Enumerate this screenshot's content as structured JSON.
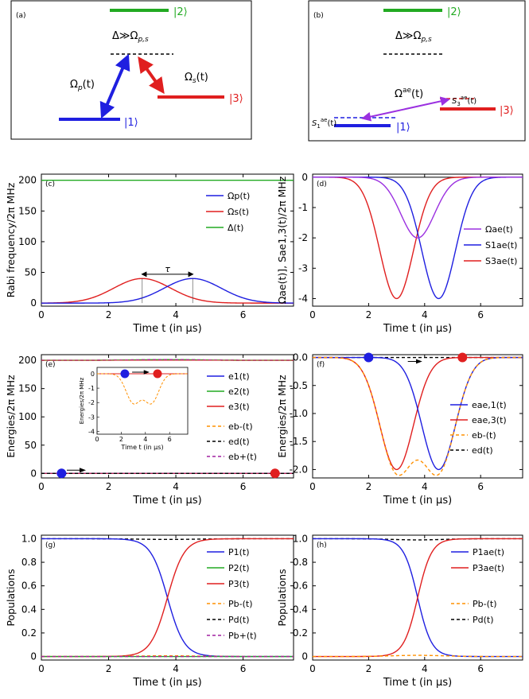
{
  "panel_a": {
    "tag": "(a)",
    "level2": "|2⟩",
    "level1": "|1⟩",
    "level3": "|3⟩",
    "detuning": "Δ≫Ω",
    "detuning_sub": "p,s",
    "pump": "Ω",
    "pump_sub": "p",
    "pump_arg": "(t)",
    "stokes": "Ω",
    "stokes_sub": "s",
    "stokes_arg": "(t)"
  },
  "panel_b": {
    "tag": "(b)",
    "level2": "|2⟩",
    "level1": "|1⟩",
    "level3": "|3⟩",
    "detuning": "Δ≫Ω",
    "detuning_sub": "p,s",
    "coupling": "Ω",
    "coupling_sup": "ae",
    "coupling_arg": "(t)",
    "shift1": "S",
    "shift1_sub": "1",
    "shift1_sup": "ae",
    "shift1_arg": "(t)",
    "shift3": "S",
    "shift3_sub": "3",
    "shift3_sup": "ae",
    "shift3_arg": "(t)"
  },
  "colors": {
    "blue": "#1f1fe0",
    "red": "#e01f1f",
    "green": "#22aa22",
    "purple": "#9b30e0",
    "orange": "#ff9000",
    "black": "#000000",
    "dashed_purple": "#a020a0"
  },
  "chart_data": [
    {
      "id": "c",
      "tag": "(c)",
      "type": "line",
      "xlabel": "Time t (in μs)",
      "ylabel": "Rabi frequency/2π MHz",
      "xlim": [
        0,
        7.5
      ],
      "ylim": [
        -5,
        210
      ],
      "xticks": [
        0,
        2,
        4,
        6
      ],
      "yticks": [
        0,
        50,
        100,
        150,
        200
      ],
      "annotation": "τ",
      "series": [
        {
          "name": "Ωp(t)",
          "color": "#1f1fe0",
          "kind": "gauss",
          "amp": 40,
          "center": 4.5,
          "sigma": 0.85
        },
        {
          "name": "Ωs(t)",
          "color": "#e01f1f",
          "kind": "gauss",
          "amp": 40,
          "center": 3.0,
          "sigma": 0.85
        },
        {
          "name": "Δ(t)",
          "color": "#22aa22",
          "kind": "const",
          "value": 200
        }
      ]
    },
    {
      "id": "d",
      "tag": "(d)",
      "type": "line",
      "xlabel": "Time t (in μs)",
      "ylabel": "Ωae(t)], Sae1,3(t)/2π MHz",
      "xlim": [
        0,
        7.5
      ],
      "ylim": [
        -4.25,
        0.1
      ],
      "xticks": [
        0,
        2,
        4,
        6
      ],
      "yticks": [
        0,
        -1,
        -2,
        -3,
        -4
      ],
      "series": [
        {
          "name": "Ωae(t)",
          "color": "#9b30e0",
          "kind": "prod",
          "amp": -2.0
        },
        {
          "name": "S1ae(t)",
          "color": "#1f1fe0",
          "kind": "gauss",
          "amp": -4.0,
          "center": 4.5,
          "sigma": 0.6
        },
        {
          "name": "S3ae(t)",
          "color": "#e01f1f",
          "kind": "gauss",
          "amp": -4.0,
          "center": 3.0,
          "sigma": 0.6
        }
      ]
    },
    {
      "id": "e",
      "tag": "(e)",
      "type": "line",
      "xlabel": "Time t (in μs)",
      "ylabel": "Energies/2π MHz",
      "xlim": [
        0,
        7.5
      ],
      "ylim": [
        -8,
        210
      ],
      "xticks": [
        0,
        2,
        4,
        6
      ],
      "yticks": [
        0,
        50,
        100,
        150,
        200
      ],
      "series": [
        {
          "name": "e1(t)",
          "color": "#1f1fe0"
        },
        {
          "name": "e2(t)",
          "color": "#22aa22"
        },
        {
          "name": "e3(t)",
          "color": "#e01f1f"
        },
        {
          "name": "eb-(t)",
          "color": "#ff9000",
          "dashed": true
        },
        {
          "name": "ed(t)",
          "color": "#000000",
          "dashed": true
        },
        {
          "name": "eb+(t)",
          "color": "#a020a0",
          "dashed": true
        }
      ],
      "inset": {
        "xlabel": "Time t (in μs)",
        "ylabel": "Energies/2π MHz",
        "xticks": [
          0,
          2,
          4,
          6
        ],
        "yticks": [
          0,
          -1,
          -2,
          -3,
          -4
        ]
      }
    },
    {
      "id": "f",
      "tag": "(f)",
      "type": "line",
      "xlabel": "Time t (in μs)",
      "ylabel": "Energies/2π MHz",
      "xlim": [
        0,
        7.5
      ],
      "ylim": [
        -2.15,
        0.05
      ],
      "xticks": [
        0,
        2,
        4,
        6
      ],
      "yticks": [
        0.0,
        -0.5,
        -1.0,
        -1.5,
        -2.0
      ],
      "series": [
        {
          "name": "eae,1(t)",
          "color": "#1f1fe0"
        },
        {
          "name": "eae,3(t)",
          "color": "#e01f1f"
        },
        {
          "name": "eb-(t)",
          "color": "#ff9000",
          "dashed": true
        },
        {
          "name": "ed(t)",
          "color": "#000000",
          "dashed": true
        }
      ]
    },
    {
      "id": "g",
      "tag": "(g)",
      "type": "line",
      "xlabel": "Time t (in μs)",
      "ylabel": "Populations",
      "xlim": [
        0,
        7.5
      ],
      "ylim": [
        -0.03,
        1.03
      ],
      "xticks": [
        0,
        2,
        4,
        6
      ],
      "yticks": [
        0,
        0.2,
        0.4,
        0.6,
        0.8,
        1.0
      ],
      "series": [
        {
          "name": "P1(t)",
          "color": "#1f1fe0"
        },
        {
          "name": "P2(t)",
          "color": "#22aa22"
        },
        {
          "name": "P3(t)",
          "color": "#e01f1f"
        },
        {
          "name": "Pb-(t)",
          "color": "#ff9000",
          "dashed": true
        },
        {
          "name": "Pd(t)",
          "color": "#000000",
          "dashed": true
        },
        {
          "name": "Pb+(t)",
          "color": "#a020a0",
          "dashed": true
        }
      ]
    },
    {
      "id": "h",
      "tag": "(h)",
      "type": "line",
      "xlabel": "Time t (in μs)",
      "ylabel": "Populations",
      "xlim": [
        0,
        7.5
      ],
      "ylim": [
        -0.03,
        1.03
      ],
      "xticks": [
        0,
        2,
        4,
        6
      ],
      "yticks": [
        0,
        0.2,
        0.4,
        0.6,
        0.8,
        1.0
      ],
      "series": [
        {
          "name": "P1ae(t)",
          "color": "#1f1fe0"
        },
        {
          "name": "P3ae(t)",
          "color": "#e01f1f"
        },
        {
          "name": "Pb-(t)",
          "color": "#ff9000",
          "dashed": true
        },
        {
          "name": "Pd(t)",
          "color": "#000000",
          "dashed": true
        }
      ]
    }
  ]
}
